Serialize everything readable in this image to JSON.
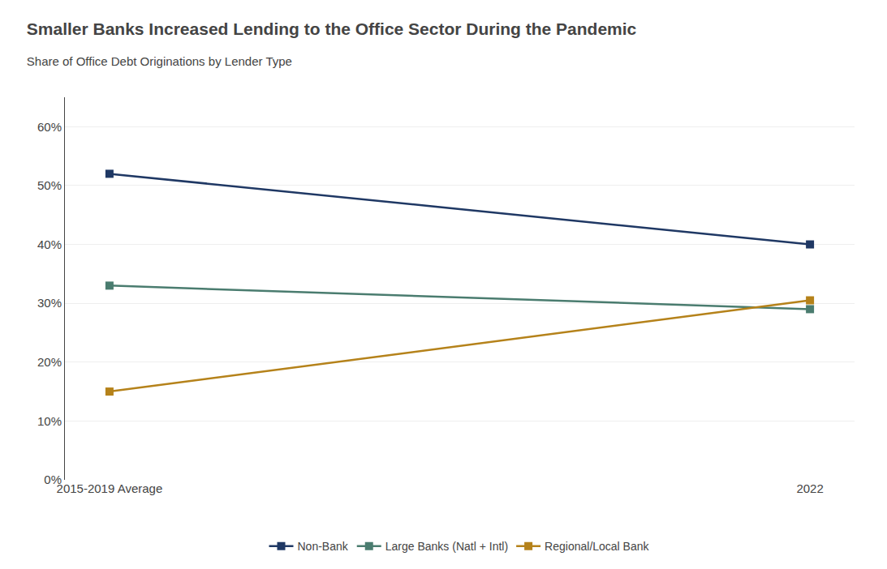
{
  "chart_data": {
    "type": "line",
    "title": "Smaller Banks Increased Lending to the Office Sector During the Pandemic",
    "subtitle": "Share of Office Debt Originations by Lender Type",
    "categories": [
      "2015-2019 Average",
      "2022"
    ],
    "series": [
      {
        "name": "Non-Bank",
        "color": "#1f3864",
        "marker": "square",
        "values": [
          0.52,
          0.4
        ]
      },
      {
        "name": "Large Banks (Natl + Intl)",
        "color": "#4a7c6f",
        "marker": "square",
        "values": [
          0.33,
          0.29
        ]
      },
      {
        "name": "Regional/Local Bank",
        "color": "#b5821a",
        "marker": "square",
        "values": [
          0.15,
          0.305
        ]
      }
    ],
    "ylim": [
      0.0,
      0.65
    ],
    "yticks": [
      {
        "value": 0.0,
        "label": "0%"
      },
      {
        "value": 0.1,
        "label": "10%"
      },
      {
        "value": 0.2,
        "label": "20%"
      },
      {
        "value": 0.3,
        "label": "30%"
      },
      {
        "value": 0.4,
        "label": "40%"
      },
      {
        "value": 0.5,
        "label": "50%"
      },
      {
        "value": 0.6,
        "label": "60%"
      }
    ],
    "grid": true,
    "legend": "bottom"
  }
}
